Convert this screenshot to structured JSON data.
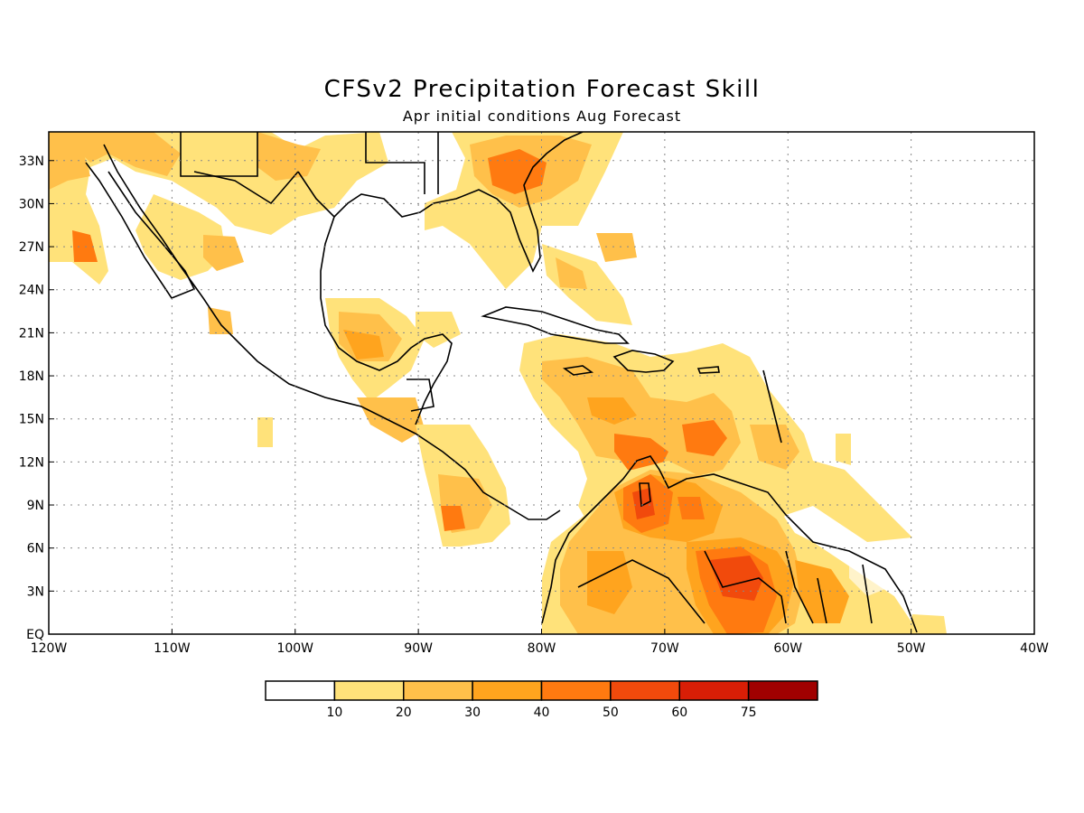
{
  "title": "CFSv2 Precipitation Forecast Skill",
  "subtitle": "Apr initial conditions   Aug Forecast",
  "map": {
    "lon_range": [
      -120,
      -40
    ],
    "lat_range": [
      0,
      35
    ],
    "x_tick_labels": [
      "120W",
      "110W",
      "100W",
      "90W",
      "80W",
      "70W",
      "60W",
      "50W",
      "40W"
    ],
    "y_tick_labels": [
      "EQ",
      "3N",
      "6N",
      "9N",
      "12N",
      "15N",
      "18N",
      "21N",
      "24N",
      "27N",
      "30N",
      "33N"
    ],
    "gridlines": true,
    "background_color": "#ffffff",
    "coastline_color": "#000000"
  },
  "colorbar": {
    "labels": [
      "10",
      "20",
      "30",
      "40",
      "50",
      "60",
      "75"
    ],
    "colors": [
      "#ffffff",
      "#ffe27a",
      "#ffc04a",
      "#ffa41e",
      "#ff7a10",
      "#f14a0c",
      "#d81e06",
      "#a00000"
    ]
  }
}
